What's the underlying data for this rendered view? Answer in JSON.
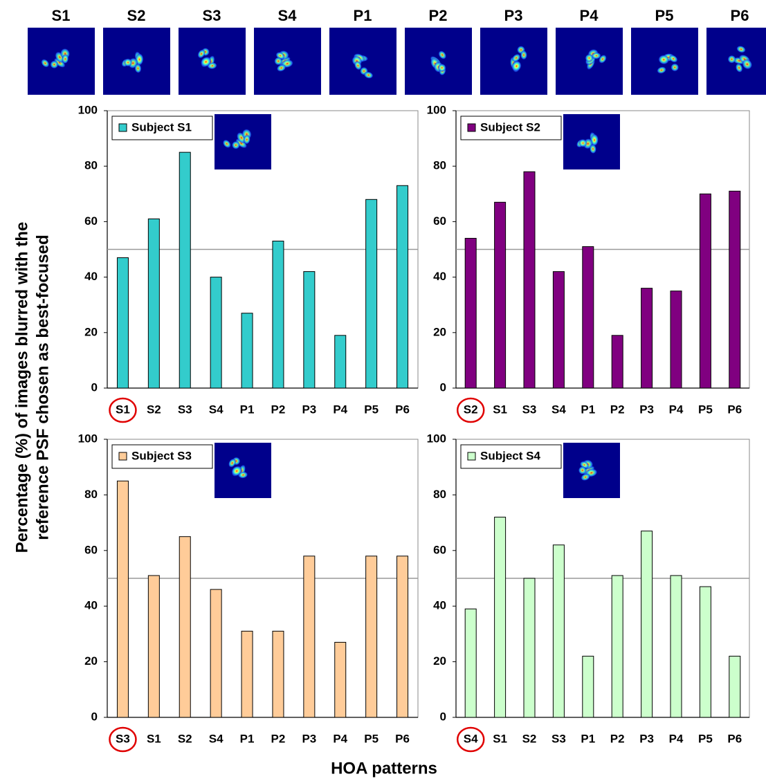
{
  "psf_patterns": [
    "S1",
    "S2",
    "S3",
    "S4",
    "P1",
    "P2",
    "P3",
    "P4",
    "P5",
    "P6"
  ],
  "ylabel": [
    "Percentage (%) of images blurred with the",
    "reference PSF chosen as best-focused"
  ],
  "xlabel": "HOA patterns",
  "chart_data": [
    {
      "type": "bar",
      "categories": [
        "S1",
        "S2",
        "S3",
        "S4",
        "P1",
        "P2",
        "P3",
        "P4",
        "P5",
        "P6"
      ],
      "series": [
        {
          "name": "Subject S1",
          "color": "#33cccc",
          "values": [
            47,
            61,
            85,
            40,
            27,
            53,
            42,
            19,
            68,
            73
          ]
        }
      ],
      "ylim": [
        0,
        100
      ],
      "yticks": [
        0,
        20,
        40,
        60,
        80,
        100
      ],
      "reference_line": 50,
      "circled_category": "S1"
    },
    {
      "type": "bar",
      "categories": [
        "S2",
        "S1",
        "S3",
        "S4",
        "P1",
        "P2",
        "P3",
        "P4",
        "P5",
        "P6"
      ],
      "series": [
        {
          "name": "Subject S2",
          "color": "#800080",
          "values": [
            54,
            67,
            78,
            42,
            51,
            19,
            36,
            35,
            70,
            71
          ]
        }
      ],
      "ylim": [
        0,
        100
      ],
      "yticks": [
        0,
        20,
        40,
        60,
        80,
        100
      ],
      "reference_line": 50,
      "circled_category": "S2"
    },
    {
      "type": "bar",
      "categories": [
        "S3",
        "S1",
        "S2",
        "S4",
        "P1",
        "P2",
        "P3",
        "P4",
        "P5",
        "P6"
      ],
      "series": [
        {
          "name": "Subject S3",
          "color": "#ffcc99",
          "values": [
            85,
            51,
            65,
            46,
            31,
            31,
            58,
            27,
            58,
            58
          ]
        }
      ],
      "ylim": [
        0,
        100
      ],
      "yticks": [
        0,
        20,
        40,
        60,
        80,
        100
      ],
      "reference_line": 50,
      "circled_category": "S3"
    },
    {
      "type": "bar",
      "categories": [
        "S4",
        "S1",
        "S2",
        "S3",
        "P1",
        "P2",
        "P3",
        "P4",
        "P5",
        "P6"
      ],
      "series": [
        {
          "name": "Subject S4",
          "color": "#ccffcc",
          "values": [
            39,
            72,
            50,
            62,
            22,
            51,
            67,
            51,
            47,
            22
          ]
        }
      ],
      "ylim": [
        0,
        100
      ],
      "yticks": [
        0,
        20,
        40,
        60,
        80,
        100
      ],
      "reference_line": 50,
      "circled_category": "S4"
    }
  ]
}
